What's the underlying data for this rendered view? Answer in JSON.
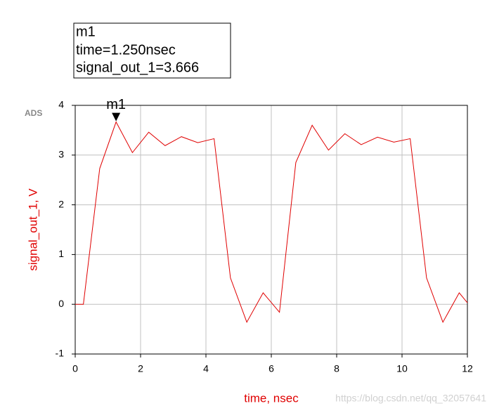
{
  "chart_data": {
    "type": "line",
    "xlabel": "time, nsec",
    "ylabel": "signal_out_1, V",
    "x": [
      0,
      0.25,
      0.75,
      1.25,
      1.75,
      2.25,
      2.75,
      3.25,
      3.75,
      4.25,
      4.75,
      5.25,
      5.75,
      6.25,
      6.75,
      7.25,
      7.75,
      8.25,
      8.75,
      9.25,
      9.75,
      10.25,
      10.75,
      11.25,
      11.75,
      12
    ],
    "values": [
      0,
      0,
      2.73,
      3.666,
      3.05,
      3.46,
      3.19,
      3.37,
      3.25,
      3.33,
      0.53,
      -0.36,
      0.23,
      -0.16,
      2.85,
      3.6,
      3.1,
      3.43,
      3.21,
      3.36,
      3.26,
      3.33,
      0.53,
      -0.36,
      0.23,
      0.03
    ],
    "color": "#e00000",
    "xlim": [
      0,
      12
    ],
    "ylim": [
      -1,
      4
    ],
    "xticks": [
      0,
      2,
      4,
      6,
      8,
      10,
      12
    ],
    "yticks": [
      -1,
      0,
      1,
      2,
      3,
      4
    ],
    "grid": true,
    "marker": {
      "label": "m1",
      "x": 1.25,
      "y": 3.666,
      "lines": [
        "m1",
        "time=1.250nsec",
        "signal_out_1=3.666"
      ]
    },
    "logo": "ADS",
    "watermark": "https://blog.csdn.net/qq_32057641"
  }
}
